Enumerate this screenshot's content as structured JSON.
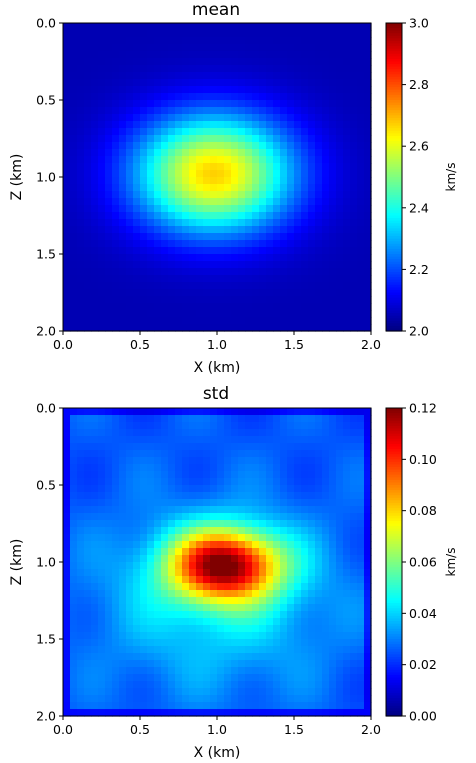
{
  "chart_data": [
    {
      "type": "heatmap",
      "title": "mean",
      "xlabel": "X (km)",
      "ylabel": "Z (km)",
      "xlim": [
        0.0,
        2.0
      ],
      "ylim": [
        2.0,
        0.0
      ],
      "xticks": [
        "0.0",
        "0.5",
        "1.0",
        "1.5",
        "2.0"
      ],
      "yticks": [
        "0.0",
        "0.5",
        "1.0",
        "1.5",
        "2.0"
      ],
      "colorbar": {
        "label": "km/s",
        "min": 2.0,
        "max": 3.0,
        "ticks": [
          "2.0",
          "2.2",
          "2.4",
          "2.6",
          "2.8",
          "3.0"
        ]
      },
      "colormap": "jet",
      "anomaly": {
        "center_x": 0.98,
        "center_z": 0.98,
        "peak": 2.67,
        "background": 2.05
      }
    },
    {
      "type": "heatmap",
      "title": "std",
      "xlabel": "X (km)",
      "ylabel": "Z (km)",
      "xlim": [
        0.0,
        2.0
      ],
      "ylim": [
        2.0,
        0.0
      ],
      "xticks": [
        "0.0",
        "0.5",
        "1.0",
        "1.5",
        "2.0"
      ],
      "yticks": [
        "0.0",
        "0.5",
        "1.0",
        "1.5",
        "2.0"
      ],
      "colorbar": {
        "label": "km/s",
        "min": 0.0,
        "max": 0.12,
        "ticks": [
          "0.00",
          "0.02",
          "0.04",
          "0.06",
          "0.08",
          "0.10",
          "0.12"
        ]
      },
      "colormap": "jet",
      "anomaly": {
        "center_x": 1.05,
        "center_z": 1.02,
        "peak": 0.11,
        "background": 0.025
      }
    }
  ]
}
